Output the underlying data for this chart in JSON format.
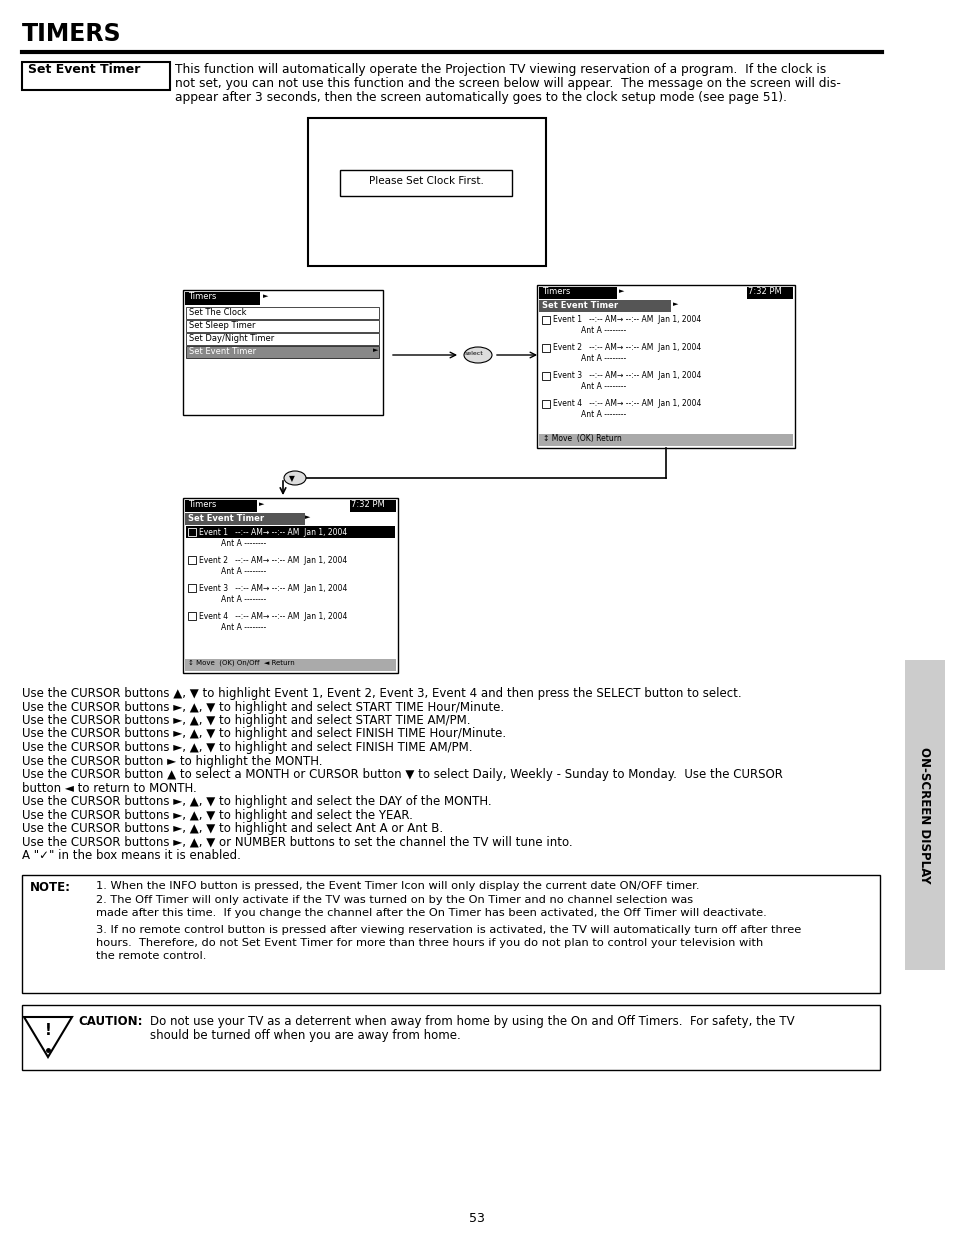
{
  "title": "TIMERS",
  "page_num": "53",
  "section_label": "Set Event Timer",
  "intro_text_lines": [
    "This function will automatically operate the Projection TV viewing reservation of a program.  If the clock is",
    "not set, you can not use this function and the screen below will appear.  The message on the screen will dis-",
    "appear after 3 seconds, then the screen automatically goes to the clock setup mode (see page 51)."
  ],
  "clock_msg": "Please Set Clock First.",
  "menu1_title": "Timers",
  "menu1_items": [
    "Set The Clock",
    "Set Sleep Timer",
    "Set Day/Night Timer",
    "Set Event Timer"
  ],
  "menu1_selected": "Set Event Timer",
  "menu2_title": "Timers",
  "menu2_time": "7:32 PM",
  "menu2_selected": "Set Event Timer",
  "menu2_footer": "↕ Move  (OK) Return",
  "menu3_title": "Timers",
  "menu3_time": "7:32 PM",
  "menu3_selected_item": "Set Event Timer",
  "menu3_footer": "↕ Move  (OK) On/Off  ◄ Return",
  "ev_lines": [
    [
      "Event 1",
      "--:-- AM→ --:-- AM  Jan 1, 2004",
      "Ant A --------"
    ],
    [
      "Event 2",
      "--:-- AM→ --:-- AM  Jan 1, 2004",
      "Ant A --------"
    ],
    [
      "Event 3",
      "--:-- AM→ --:-- AM  Jan 1, 2004",
      "Ant A --------"
    ],
    [
      "Event 4",
      "--:-- AM→ --:-- AM  Jan 1, 2004",
      "Ant A --------"
    ]
  ],
  "body_text": [
    "Use the CURSOR buttons ▲, ▼ to highlight Event 1, Event 2, Event 3, Event 4 and then press the SELECT button to select.",
    "Use the CURSOR buttons ►, ▲, ▼ to highlight and select START TIME Hour/Minute.",
    "Use the CURSOR buttons ►, ▲, ▼ to highlight and select START TIME AM/PM.",
    "Use the CURSOR buttons ►, ▲, ▼ to highlight and select FINISH TIME Hour/Minute.",
    "Use the CURSOR buttons ►, ▲, ▼ to highlight and select FINISH TIME AM/PM.",
    "Use the CURSOR button ► to highlight the MONTH.",
    "Use the CURSOR button ▲ to select a MONTH or CURSOR button ▼ to select Daily, Weekly - Sunday to Monday.  Use the CURSOR",
    "button ◄ to return to MONTH.",
    "Use the CURSOR buttons ►, ▲, ▼ to highlight and select the DAY of the MONTH.",
    "Use the CURSOR buttons ►, ▲, ▼ to highlight and select the YEAR.",
    "Use the CURSOR buttons ►, ▲, ▼ to highlight and select Ant A or Ant B.",
    "Use the CURSOR buttons ►, ▲, ▼ or NUMBER buttons to set the channel the TV will tune into.",
    "A \"✓\" in the box means it is enabled."
  ],
  "note_lines": [
    "     1. When the INFO button is pressed, the Event Timer Icon will only display the current date ON/OFF timer.",
    "     2. The Off Timer will only activate if the TV was turned on by the On Timer and no channel selection was",
    "        made after this time.  If you change the channel after the On Timer has been activated, the Off Timer will deactivate.",
    "     3. If no remote control button is pressed after viewing reservation is activated, the TV will automatically turn off after three",
    "        hours.  Therefore, do not Set Event Timer for more than three hours if you do not plan to control your television with",
    "        the remote control."
  ],
  "caution_title": "CAUTION:",
  "caution_lines": [
    "Do not use your TV as a deterrent when away from home by using the On and Off Timers.  For safety, the TV",
    "should be turned off when you are away from home."
  ],
  "sidebar_text": "ON-SCREEN DISPLAY",
  "bg_color": "#ffffff"
}
